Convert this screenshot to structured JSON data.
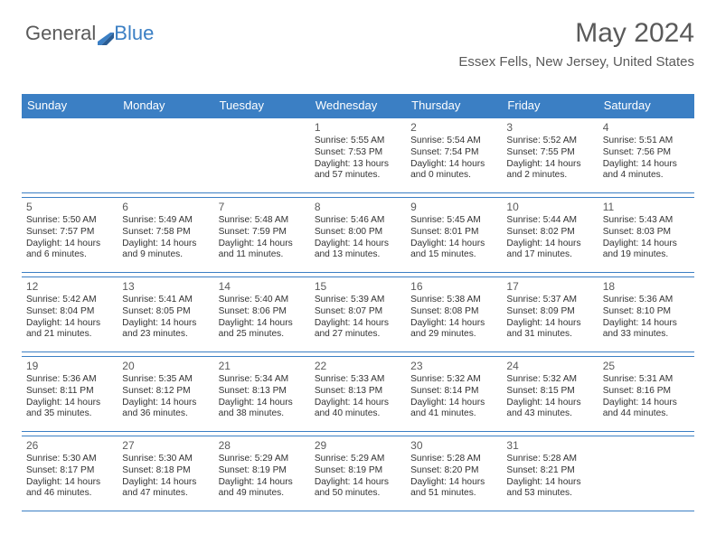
{
  "logo": {
    "text1": "General",
    "text2": "Blue"
  },
  "title": "May 2024",
  "location": "Essex Fells, New Jersey, United States",
  "weekdays": [
    "Sunday",
    "Monday",
    "Tuesday",
    "Wednesday",
    "Thursday",
    "Friday",
    "Saturday"
  ],
  "colors": {
    "header_bg": "#3b7fc4",
    "header_text": "#ffffff",
    "border": "#3b7fc4",
    "text": "#333333",
    "title_text": "#5a5a5a"
  },
  "weeks": [
    [
      null,
      null,
      null,
      {
        "n": "1",
        "sunrise": "5:55 AM",
        "sunset": "7:53 PM",
        "daylight": "13 hours and 57 minutes."
      },
      {
        "n": "2",
        "sunrise": "5:54 AM",
        "sunset": "7:54 PM",
        "daylight": "14 hours and 0 minutes."
      },
      {
        "n": "3",
        "sunrise": "5:52 AM",
        "sunset": "7:55 PM",
        "daylight": "14 hours and 2 minutes."
      },
      {
        "n": "4",
        "sunrise": "5:51 AM",
        "sunset": "7:56 PM",
        "daylight": "14 hours and 4 minutes."
      }
    ],
    [
      {
        "n": "5",
        "sunrise": "5:50 AM",
        "sunset": "7:57 PM",
        "daylight": "14 hours and 6 minutes."
      },
      {
        "n": "6",
        "sunrise": "5:49 AM",
        "sunset": "7:58 PM",
        "daylight": "14 hours and 9 minutes."
      },
      {
        "n": "7",
        "sunrise": "5:48 AM",
        "sunset": "7:59 PM",
        "daylight": "14 hours and 11 minutes."
      },
      {
        "n": "8",
        "sunrise": "5:46 AM",
        "sunset": "8:00 PM",
        "daylight": "14 hours and 13 minutes."
      },
      {
        "n": "9",
        "sunrise": "5:45 AM",
        "sunset": "8:01 PM",
        "daylight": "14 hours and 15 minutes."
      },
      {
        "n": "10",
        "sunrise": "5:44 AM",
        "sunset": "8:02 PM",
        "daylight": "14 hours and 17 minutes."
      },
      {
        "n": "11",
        "sunrise": "5:43 AM",
        "sunset": "8:03 PM",
        "daylight": "14 hours and 19 minutes."
      }
    ],
    [
      {
        "n": "12",
        "sunrise": "5:42 AM",
        "sunset": "8:04 PM",
        "daylight": "14 hours and 21 minutes."
      },
      {
        "n": "13",
        "sunrise": "5:41 AM",
        "sunset": "8:05 PM",
        "daylight": "14 hours and 23 minutes."
      },
      {
        "n": "14",
        "sunrise": "5:40 AM",
        "sunset": "8:06 PM",
        "daylight": "14 hours and 25 minutes."
      },
      {
        "n": "15",
        "sunrise": "5:39 AM",
        "sunset": "8:07 PM",
        "daylight": "14 hours and 27 minutes."
      },
      {
        "n": "16",
        "sunrise": "5:38 AM",
        "sunset": "8:08 PM",
        "daylight": "14 hours and 29 minutes."
      },
      {
        "n": "17",
        "sunrise": "5:37 AM",
        "sunset": "8:09 PM",
        "daylight": "14 hours and 31 minutes."
      },
      {
        "n": "18",
        "sunrise": "5:36 AM",
        "sunset": "8:10 PM",
        "daylight": "14 hours and 33 minutes."
      }
    ],
    [
      {
        "n": "19",
        "sunrise": "5:36 AM",
        "sunset": "8:11 PM",
        "daylight": "14 hours and 35 minutes."
      },
      {
        "n": "20",
        "sunrise": "5:35 AM",
        "sunset": "8:12 PM",
        "daylight": "14 hours and 36 minutes."
      },
      {
        "n": "21",
        "sunrise": "5:34 AM",
        "sunset": "8:13 PM",
        "daylight": "14 hours and 38 minutes."
      },
      {
        "n": "22",
        "sunrise": "5:33 AM",
        "sunset": "8:13 PM",
        "daylight": "14 hours and 40 minutes."
      },
      {
        "n": "23",
        "sunrise": "5:32 AM",
        "sunset": "8:14 PM",
        "daylight": "14 hours and 41 minutes."
      },
      {
        "n": "24",
        "sunrise": "5:32 AM",
        "sunset": "8:15 PM",
        "daylight": "14 hours and 43 minutes."
      },
      {
        "n": "25",
        "sunrise": "5:31 AM",
        "sunset": "8:16 PM",
        "daylight": "14 hours and 44 minutes."
      }
    ],
    [
      {
        "n": "26",
        "sunrise": "5:30 AM",
        "sunset": "8:17 PM",
        "daylight": "14 hours and 46 minutes."
      },
      {
        "n": "27",
        "sunrise": "5:30 AM",
        "sunset": "8:18 PM",
        "daylight": "14 hours and 47 minutes."
      },
      {
        "n": "28",
        "sunrise": "5:29 AM",
        "sunset": "8:19 PM",
        "daylight": "14 hours and 49 minutes."
      },
      {
        "n": "29",
        "sunrise": "5:29 AM",
        "sunset": "8:19 PM",
        "daylight": "14 hours and 50 minutes."
      },
      {
        "n": "30",
        "sunrise": "5:28 AM",
        "sunset": "8:20 PM",
        "daylight": "14 hours and 51 minutes."
      },
      {
        "n": "31",
        "sunrise": "5:28 AM",
        "sunset": "8:21 PM",
        "daylight": "14 hours and 53 minutes."
      },
      null
    ]
  ],
  "labels": {
    "sunrise": "Sunrise:",
    "sunset": "Sunset:",
    "daylight": "Daylight:"
  }
}
